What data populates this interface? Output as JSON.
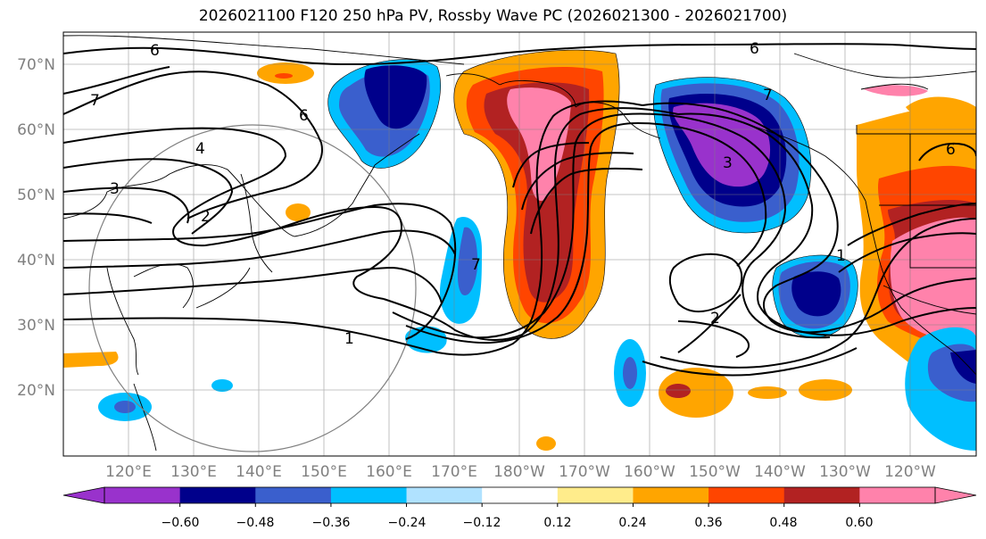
{
  "title": "2026021100 F120 250 hPa PV, Rossby Wave PC (2026021300 - 2026021700)",
  "lat_labels": [
    "70°N",
    "60°N",
    "50°N",
    "40°N",
    "30°N",
    "20°N"
  ],
  "lon_labels": [
    "120°E",
    "130°E",
    "140°E",
    "150°E",
    "160°E",
    "170°E",
    "180°W",
    "170°W",
    "160°W",
    "150°W",
    "140°W",
    "130°W",
    "120°W"
  ],
  "colorbar": {
    "ticks": [
      "−0.60",
      "−0.48",
      "−0.36",
      "−0.24",
      "−0.12",
      "0.12",
      "0.24",
      "0.36",
      "0.48",
      "0.60"
    ],
    "colors": [
      "#9932cc",
      "#00008b",
      "#3a5fcd",
      "#00bfff",
      "#b0e2ff",
      "#ffffff",
      "#ffec8b",
      "#ffa500",
      "#ff4500",
      "#b22222",
      "#ff82ab"
    ]
  },
  "contour_labels": [
    "6",
    "7",
    "6",
    "4",
    "3",
    "2",
    "6",
    "7",
    "3",
    "2",
    "1",
    "1",
    "7",
    "6"
  ]
}
